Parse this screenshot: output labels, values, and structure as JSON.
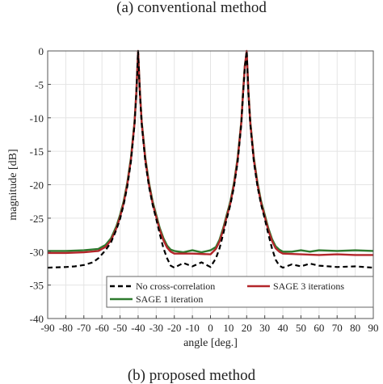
{
  "captions": {
    "top": "(a) conventional method",
    "bottom": "(b) proposed method"
  },
  "chart_data": {
    "type": "line",
    "xlabel": "angle [deg.]",
    "ylabel": "magnitude [dB]",
    "xlim": [
      -90,
      90
    ],
    "ylim": [
      -40,
      0
    ],
    "xticks": [
      -90,
      -80,
      -70,
      -60,
      -50,
      -40,
      -30,
      -20,
      -10,
      0,
      10,
      20,
      30,
      40,
      50,
      60,
      70,
      80,
      90
    ],
    "yticks": [
      0,
      -5,
      -10,
      -15,
      -20,
      -25,
      -30,
      -35,
      -40
    ],
    "grid": true,
    "legend": "bottom",
    "series": [
      {
        "name": "No cross-correlation",
        "color": "#000000",
        "style": "dashed",
        "x": [
          -90,
          -80,
          -75,
          -70,
          -65,
          -62,
          -58,
          -55,
          -52,
          -50,
          -48,
          -46,
          -44,
          -42,
          -41,
          -40,
          -39,
          -38,
          -36,
          -34,
          -32,
          -30,
          -28,
          -26,
          -24,
          -22,
          -20,
          -15,
          -10,
          -5,
          0,
          3,
          5,
          7,
          9,
          11,
          13,
          15,
          17,
          18,
          19,
          20,
          21,
          22,
          24,
          26,
          28,
          30,
          32,
          34,
          36,
          38,
          40,
          45,
          50,
          55,
          60,
          70,
          80,
          90
        ],
        "y": [
          -32.4,
          -32.3,
          -32.2,
          -32.0,
          -31.6,
          -31.0,
          -29.8,
          -28.6,
          -26.7,
          -25.1,
          -23.0,
          -20.3,
          -16.6,
          -11.0,
          -6.5,
          0,
          -6.5,
          -11.0,
          -16.6,
          -20.3,
          -23.0,
          -25.1,
          -27.4,
          -29.5,
          -31.0,
          -32.1,
          -32.4,
          -31.7,
          -32.2,
          -31.6,
          -32.3,
          -31.0,
          -29.5,
          -27.4,
          -25.1,
          -23.0,
          -20.3,
          -16.6,
          -11.0,
          -6.5,
          -2.5,
          0,
          -6.5,
          -11.0,
          -16.6,
          -20.3,
          -23.0,
          -25.1,
          -27.4,
          -29.5,
          -31.2,
          -32.1,
          -32.4,
          -31.9,
          -32.2,
          -31.8,
          -32.1,
          -32.3,
          -32.2,
          -32.4
        ]
      },
      {
        "name": "SAGE 3 iterations",
        "color": "#b3262a",
        "style": "solid",
        "x": [
          -90,
          -80,
          -70,
          -62,
          -58,
          -55,
          -52,
          -50,
          -48,
          -46,
          -44,
          -42,
          -41,
          -40,
          -39,
          -38,
          -36,
          -34,
          -32,
          -30,
          -28,
          -26,
          -24,
          -22,
          -20,
          -10,
          0,
          3,
          5,
          7,
          9,
          11,
          13,
          15,
          17,
          18,
          19,
          20,
          21,
          22,
          24,
          26,
          28,
          30,
          32,
          34,
          36,
          38,
          40,
          50,
          60,
          70,
          80,
          90
        ],
        "y": [
          -30.2,
          -30.2,
          -30.1,
          -29.9,
          -29.3,
          -28.3,
          -26.5,
          -24.8,
          -22.8,
          -20.0,
          -16.3,
          -10.8,
          -6.3,
          0,
          -6.3,
          -10.8,
          -16.3,
          -20.0,
          -22.8,
          -24.8,
          -26.8,
          -28.3,
          -29.4,
          -30.0,
          -30.3,
          -30.3,
          -30.4,
          -29.6,
          -28.5,
          -26.8,
          -24.8,
          -22.8,
          -20.0,
          -16.3,
          -10.8,
          -6.3,
          -2.3,
          0,
          -6.3,
          -10.8,
          -16.3,
          -20.0,
          -22.8,
          -24.8,
          -26.8,
          -28.4,
          -29.5,
          -30.0,
          -30.3,
          -30.4,
          -30.5,
          -30.4,
          -30.5,
          -30.5
        ]
      },
      {
        "name": "SAGE 1 iteration",
        "color": "#2e7a2e",
        "style": "solid",
        "x": [
          -90,
          -80,
          -70,
          -62,
          -58,
          -55,
          -52,
          -50,
          -48,
          -46,
          -44,
          -42,
          -41,
          -40,
          -39,
          -38,
          -36,
          -34,
          -32,
          -30,
          -28,
          -26,
          -24,
          -22,
          -20,
          -15,
          -10,
          -5,
          0,
          3,
          5,
          7,
          9,
          11,
          13,
          15,
          17,
          18,
          19,
          20,
          21,
          22,
          24,
          26,
          28,
          30,
          32,
          34,
          36,
          38,
          40,
          45,
          50,
          55,
          60,
          70,
          80,
          90
        ],
        "y": [
          -29.9,
          -29.9,
          -29.8,
          -29.6,
          -29.0,
          -28.0,
          -26.2,
          -24.5,
          -22.5,
          -19.7,
          -16.0,
          -10.6,
          -6.2,
          -0.3,
          -6.2,
          -10.6,
          -16.0,
          -19.7,
          -22.5,
          -24.5,
          -26.5,
          -28.0,
          -29.1,
          -29.7,
          -29.9,
          -30.1,
          -29.8,
          -30.1,
          -29.8,
          -29.3,
          -28.2,
          -26.5,
          -24.5,
          -22.5,
          -19.7,
          -16.0,
          -10.6,
          -6.2,
          -2.2,
          -0.3,
          -6.2,
          -10.6,
          -16.0,
          -19.7,
          -22.5,
          -24.5,
          -26.5,
          -28.1,
          -29.2,
          -29.7,
          -30.0,
          -30.0,
          -29.8,
          -30.0,
          -29.8,
          -29.9,
          -29.8,
          -29.9
        ]
      }
    ]
  }
}
